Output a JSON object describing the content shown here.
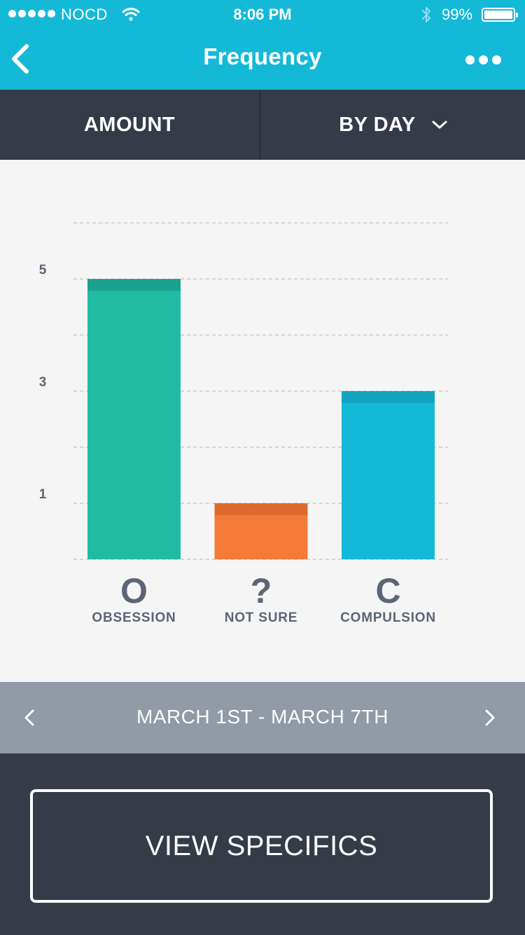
{
  "status": {
    "carrier": "NOCD",
    "time": "8:06 PM",
    "battery": "99%"
  },
  "nav": {
    "title": "Frequency"
  },
  "filters": {
    "metric": "AMOUNT",
    "period": "BY DAY"
  },
  "chart_data": {
    "type": "bar",
    "categories": [
      "OBSESSION",
      "NOT SURE",
      "COMPULSION"
    ],
    "category_symbols": [
      "O",
      "?",
      "C"
    ],
    "values": [
      5,
      1,
      3
    ],
    "colors": [
      "#21bba4",
      "#f47b38",
      "#15b9d8"
    ],
    "cap_colors": [
      "#1aa28f",
      "#dd6a2e",
      "#12a4c1"
    ],
    "yticks": [
      1,
      3,
      5
    ],
    "ylim": [
      0,
      6
    ],
    "grid": true
  },
  "range": {
    "label": "MARCH 1ST - MARCH 7TH"
  },
  "actions": {
    "view_specifics": "VIEW SPECIFICS"
  }
}
